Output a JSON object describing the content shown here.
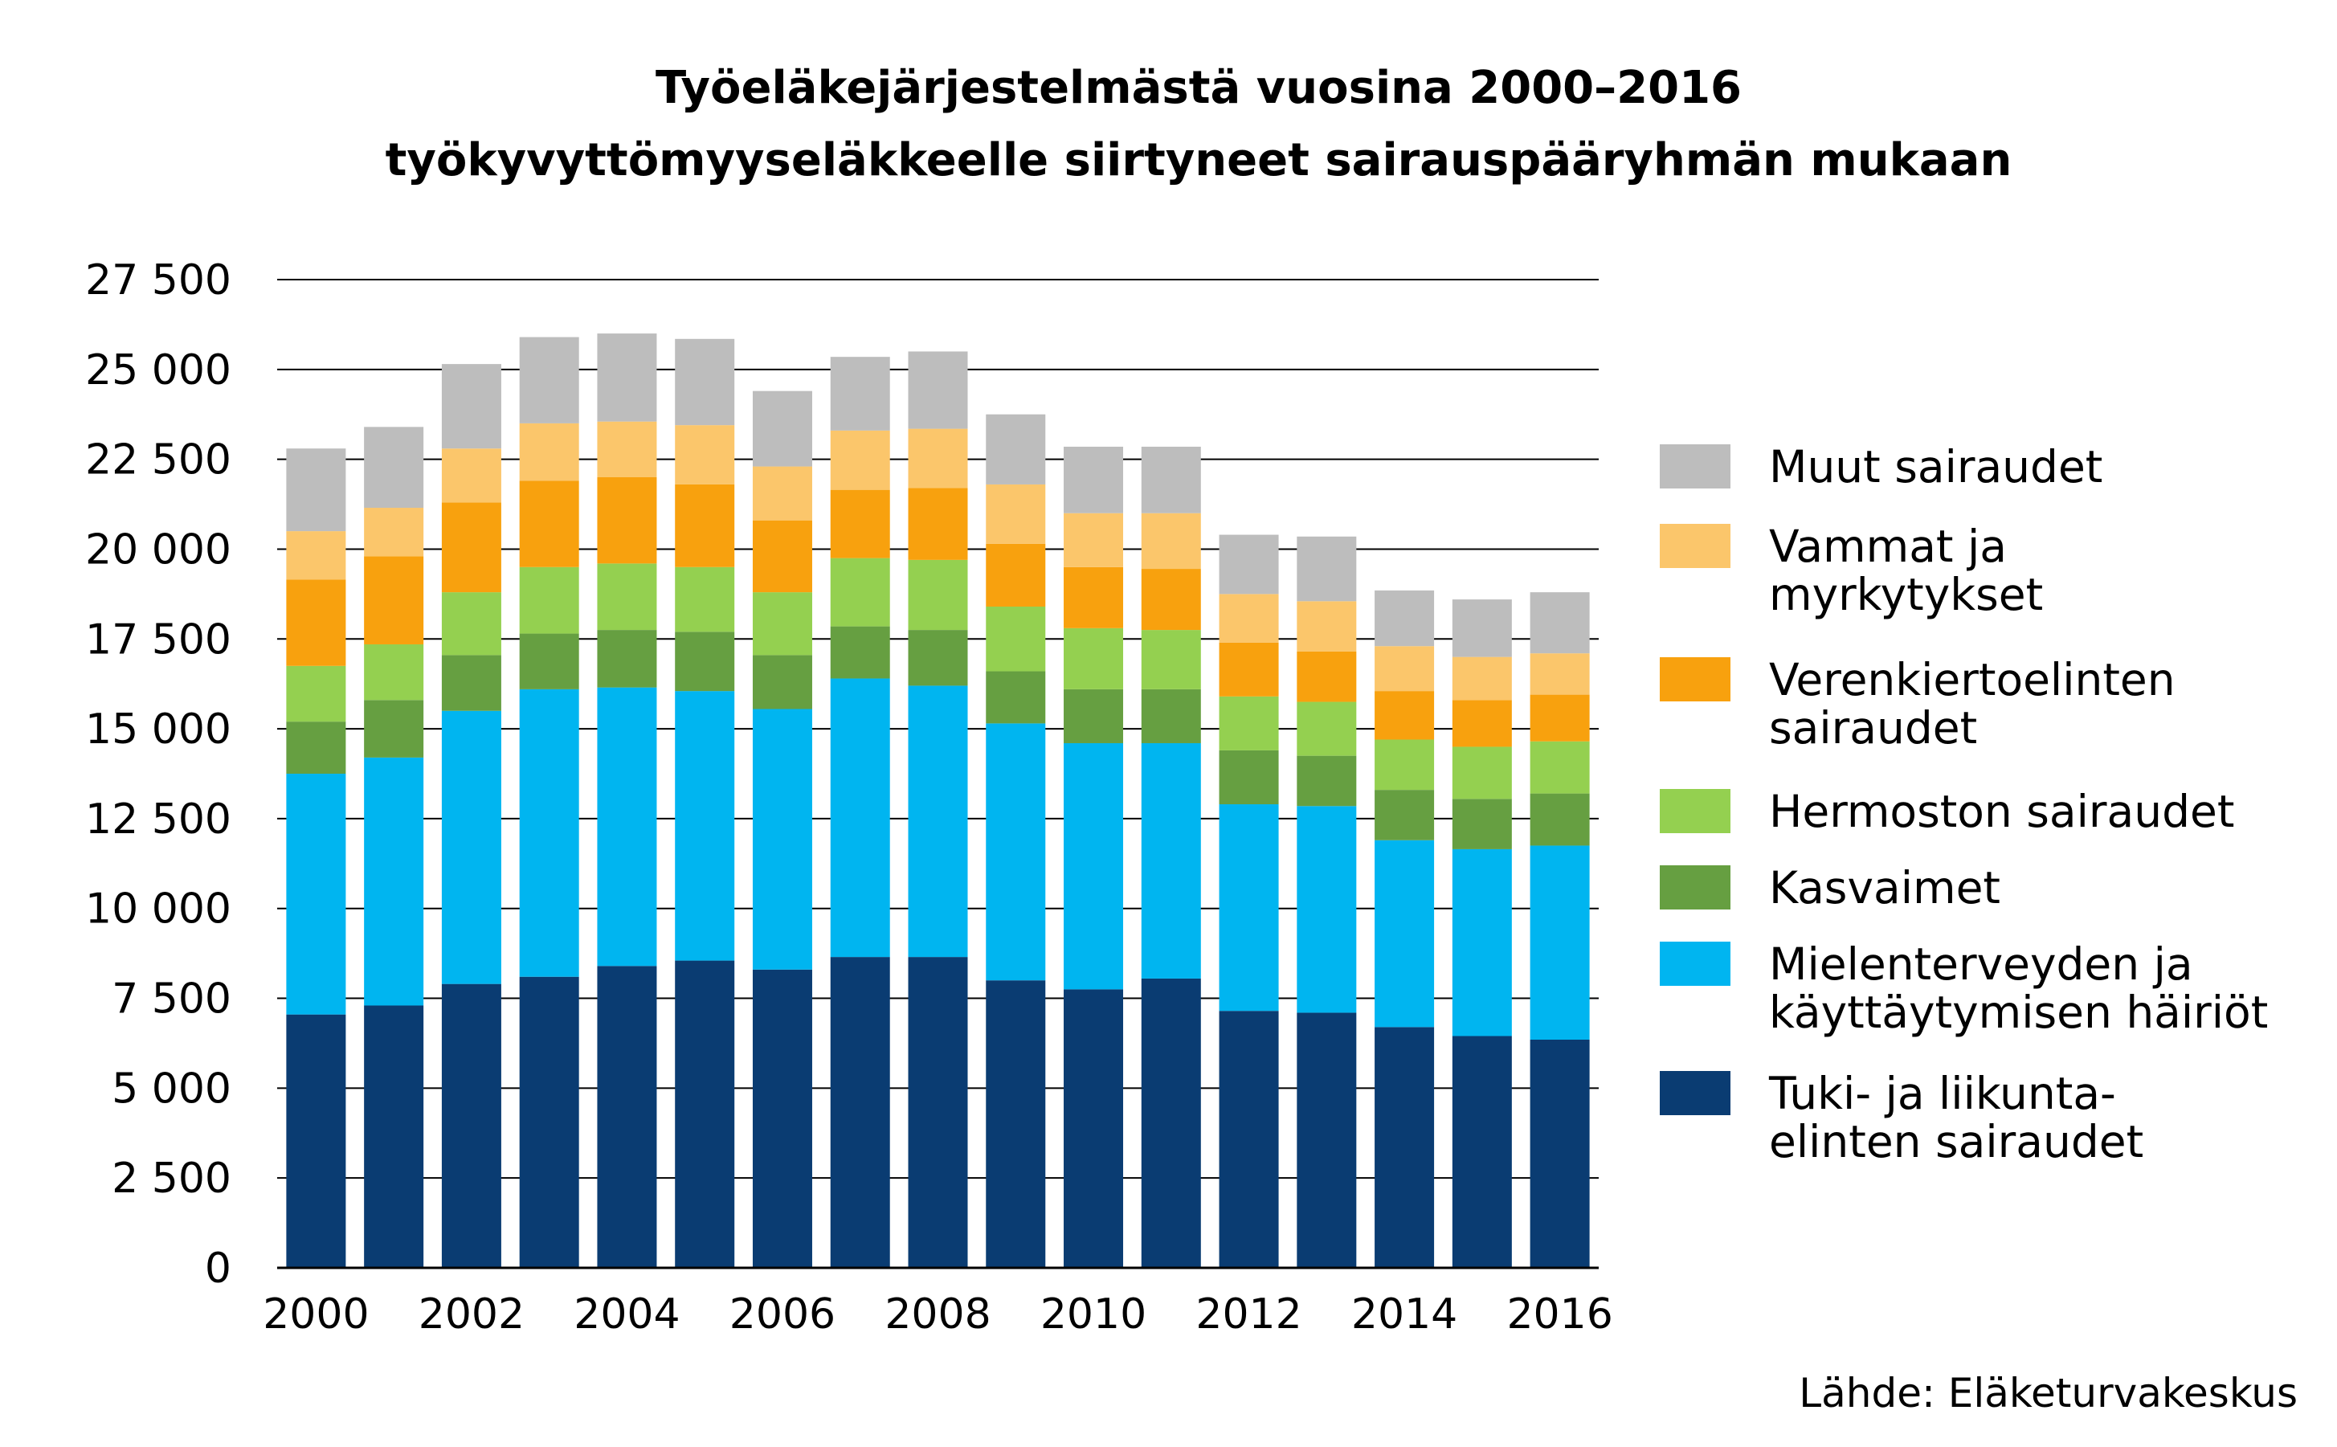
{
  "chart_data": {
    "type": "bar",
    "stacked": true,
    "title": [
      "Työeläkejärjestelmästä vuosina 2000–2016",
      "työkyvyttömyyseläkkeelle siirtyneet sairauspääryhmän mukaan"
    ],
    "source": "Lähde: Eläketurvakeskus",
    "categories": [
      "2000",
      "2001",
      "2002",
      "2003",
      "2004",
      "2005",
      "2006",
      "2007",
      "2008",
      "2009",
      "2010",
      "2011",
      "2012",
      "2013",
      "2014",
      "2015",
      "2016"
    ],
    "x_tick_labels": [
      "2000",
      "2002",
      "2004",
      "2006",
      "2008",
      "2010",
      "2012",
      "2014",
      "2016"
    ],
    "y_ticks": [
      "0",
      "2 500",
      "5 000",
      "7 500",
      "10 000",
      "12 500",
      "15 000",
      "17 500",
      "20 000",
      "22 500",
      "25 000",
      "27 500"
    ],
    "ylim": [
      0,
      27500
    ],
    "grid": "horizontal",
    "legend_position": "right",
    "series": [
      {
        "name": "Tuki- ja liikunta-elinten sairaudet",
        "legend_lines": [
          "Tuki- ja liikunta-",
          "elinten sairaudet"
        ],
        "color": "#0a3c72",
        "values": [
          7050,
          7300,
          7900,
          8100,
          8400,
          8550,
          8300,
          8650,
          8650,
          8000,
          7750,
          8050,
          7150,
          7100,
          6700,
          6450,
          6350
        ]
      },
      {
        "name": "Mielenterveyden ja käyttäytymisen häiriöt",
        "legend_lines": [
          "Mielenterveyden ja",
          "käyttäytymisen häiriöt"
        ],
        "color": "#00b5f0",
        "values": [
          6700,
          6900,
          7600,
          8000,
          7750,
          7500,
          7250,
          7750,
          7550,
          7150,
          6850,
          6550,
          5750,
          5750,
          5200,
          5200,
          5400
        ]
      },
      {
        "name": "Kasvaimet",
        "legend_lines": [
          "Kasvaimet"
        ],
        "color": "#669f41",
        "values": [
          1450,
          1600,
          1550,
          1550,
          1600,
          1650,
          1500,
          1450,
          1550,
          1450,
          1500,
          1500,
          1500,
          1400,
          1400,
          1400,
          1450
        ]
      },
      {
        "name": "Hermoston sairaudet",
        "legend_lines": [
          "Hermoston sairaudet"
        ],
        "color": "#94d050",
        "values": [
          1550,
          1550,
          1750,
          1850,
          1850,
          1800,
          1750,
          1900,
          1950,
          1800,
          1700,
          1650,
          1500,
          1500,
          1400,
          1450,
          1450
        ]
      },
      {
        "name": "Verenkiertoelinten sairaudet",
        "legend_lines": [
          "Verenkiertoelinten",
          "sairaudet"
        ],
        "color": "#f8a10e",
        "values": [
          2400,
          2450,
          2500,
          2400,
          2400,
          2300,
          2000,
          1900,
          2000,
          1750,
          1700,
          1700,
          1500,
          1400,
          1350,
          1300,
          1300
        ]
      },
      {
        "name": "Vammat ja myrkytykset",
        "legend_lines": [
          "Vammat ja",
          "myrkytykset"
        ],
        "color": "#fbc66b",
        "values": [
          1350,
          1350,
          1500,
          1600,
          1550,
          1650,
          1500,
          1650,
          1650,
          1650,
          1500,
          1550,
          1350,
          1400,
          1250,
          1200,
          1150
        ]
      },
      {
        "name": "Muut sairaudet",
        "legend_lines": [
          "Muut sairaudet"
        ],
        "color": "#bdbdbd",
        "values": [
          2300,
          2250,
          2350,
          2400,
          2450,
          2400,
          2100,
          2050,
          2150,
          1950,
          1850,
          1850,
          1650,
          1800,
          1550,
          1600,
          1700
        ]
      }
    ]
  }
}
